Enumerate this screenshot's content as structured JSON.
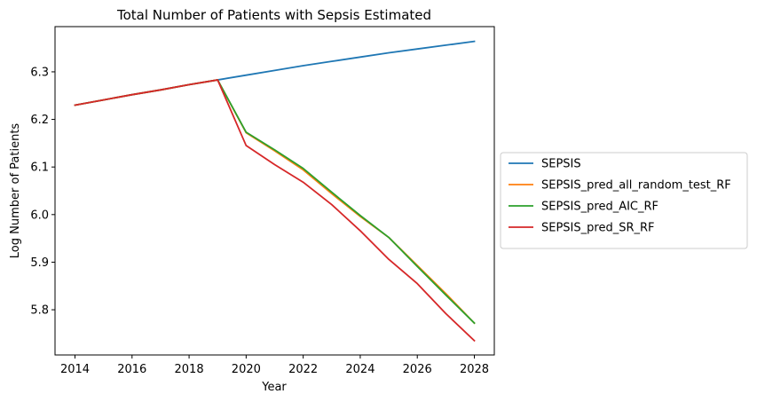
{
  "chart_data": {
    "type": "line",
    "title": "Total Number of Patients with Sepsis Estimated",
    "xlabel": "Year",
    "ylabel": "Log Number of Patients",
    "x": [
      2014,
      2015,
      2016,
      2017,
      2018,
      2019,
      2020,
      2021,
      2022,
      2023,
      2024,
      2025,
      2026,
      2027,
      2028
    ],
    "xlim": [
      2013.3,
      2028.7
    ],
    "ylim": [
      5.705,
      6.395
    ],
    "xticks": [
      2014,
      2016,
      2018,
      2020,
      2022,
      2024,
      2026,
      2028
    ],
    "yticks": [
      5.8,
      5.9,
      6.0,
      6.1,
      6.2,
      6.3
    ],
    "ytick_labels": [
      "5.8",
      "5.9",
      "6.0",
      "6.1",
      "6.2",
      "6.3"
    ],
    "grid": false,
    "legend_position": "center-right-outside",
    "series": [
      {
        "name": "SEPSIS",
        "color": "#1f77b4",
        "values": [
          6.23,
          6.241,
          6.252,
          6.262,
          6.273,
          6.283,
          6.293,
          6.303,
          6.313,
          6.322,
          6.331,
          6.34,
          6.348,
          6.356,
          6.364
        ]
      },
      {
        "name": "SEPSIS_pred_all_random_test_RF",
        "color": "#ff7f0e",
        "values": [
          6.23,
          6.241,
          6.252,
          6.262,
          6.273,
          6.283,
          6.172,
          6.134,
          6.094,
          6.044,
          5.996,
          5.952,
          5.893,
          5.834,
          5.772
        ]
      },
      {
        "name": "SEPSIS_pred_AIC_RF",
        "color": "#2ca02c",
        "values": [
          6.23,
          6.241,
          6.252,
          6.262,
          6.273,
          6.283,
          6.173,
          6.136,
          6.097,
          6.047,
          5.998,
          5.952,
          5.891,
          5.831,
          5.772
        ]
      },
      {
        "name": "SEPSIS_pred_SR_RF",
        "color": "#d62728",
        "values": [
          6.23,
          6.241,
          6.252,
          6.262,
          6.273,
          6.283,
          6.145,
          6.105,
          6.068,
          6.021,
          5.966,
          5.906,
          5.855,
          5.792,
          5.735
        ]
      }
    ]
  }
}
